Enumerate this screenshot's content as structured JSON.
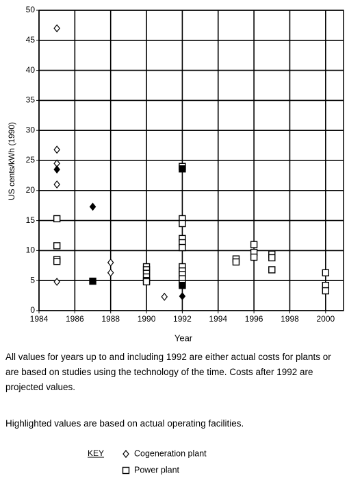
{
  "chart_data": {
    "type": "scatter",
    "ylabel": "US cents/kWh (1990)",
    "xlabel": "Year",
    "xlim": [
      1984,
      2001
    ],
    "ylim": [
      0,
      50
    ],
    "xticks": [
      1984,
      1986,
      1988,
      1990,
      1992,
      1994,
      1996,
      1998,
      2000
    ],
    "yticks": [
      0,
      5,
      10,
      15,
      20,
      25,
      30,
      35,
      40,
      45,
      50
    ],
    "grid": true,
    "series": [
      {
        "name": "Cogeneration plant",
        "marker": "diamond",
        "color": "#000000",
        "x": [
          1985,
          1985,
          1985,
          1985,
          1985,
          1985,
          1987,
          1988,
          1988,
          1991,
          1992,
          1992
        ],
        "values": [
          47,
          26.8,
          24.5,
          23.5,
          21,
          4.8,
          17.3,
          8,
          6.3,
          2.3,
          4.2,
          2.4
        ],
        "filled": [
          false,
          false,
          false,
          true,
          false,
          false,
          true,
          false,
          false,
          false,
          true,
          true
        ]
      },
      {
        "name": "Power plant",
        "marker": "square",
        "color": "#000000",
        "x": [
          1985,
          1985,
          1985,
          1985,
          1987,
          1990,
          1990,
          1990,
          1990,
          1990,
          1990,
          1992,
          1992,
          1992,
          1992,
          1992,
          1992,
          1992,
          1992,
          1992,
          1992,
          1992,
          1992,
          1992,
          1995,
          1995,
          1996,
          1996,
          1996,
          1997,
          1997,
          1997,
          2000,
          2000,
          2000
        ],
        "values": [
          15.3,
          10.8,
          8.5,
          8.2,
          4.9,
          7.3,
          6.8,
          6.2,
          5.6,
          5,
          4.8,
          24,
          23.6,
          15.3,
          14.5,
          12,
          11.3,
          10.5,
          7.3,
          6.6,
          6,
          5.3,
          4.5,
          4.2,
          8.6,
          8.1,
          11,
          9.7,
          8.9,
          9.4,
          8.8,
          6.8,
          6.3,
          4.2,
          3.3
        ],
        "filled": [
          false,
          false,
          false,
          false,
          true,
          false,
          false,
          false,
          false,
          false,
          false,
          false,
          true,
          false,
          false,
          false,
          false,
          false,
          false,
          false,
          false,
          false,
          false,
          true,
          false,
          false,
          false,
          false,
          false,
          false,
          false,
          false,
          false,
          false,
          false
        ]
      }
    ]
  },
  "notes": [
    "All values for years up to and including 1992 are either actual costs for plants or are based on studies using the technology of the time. Costs after 1992 are projected values.",
    "Highlighted values are based on actual operating facilities."
  ],
  "key_label": "KEY"
}
